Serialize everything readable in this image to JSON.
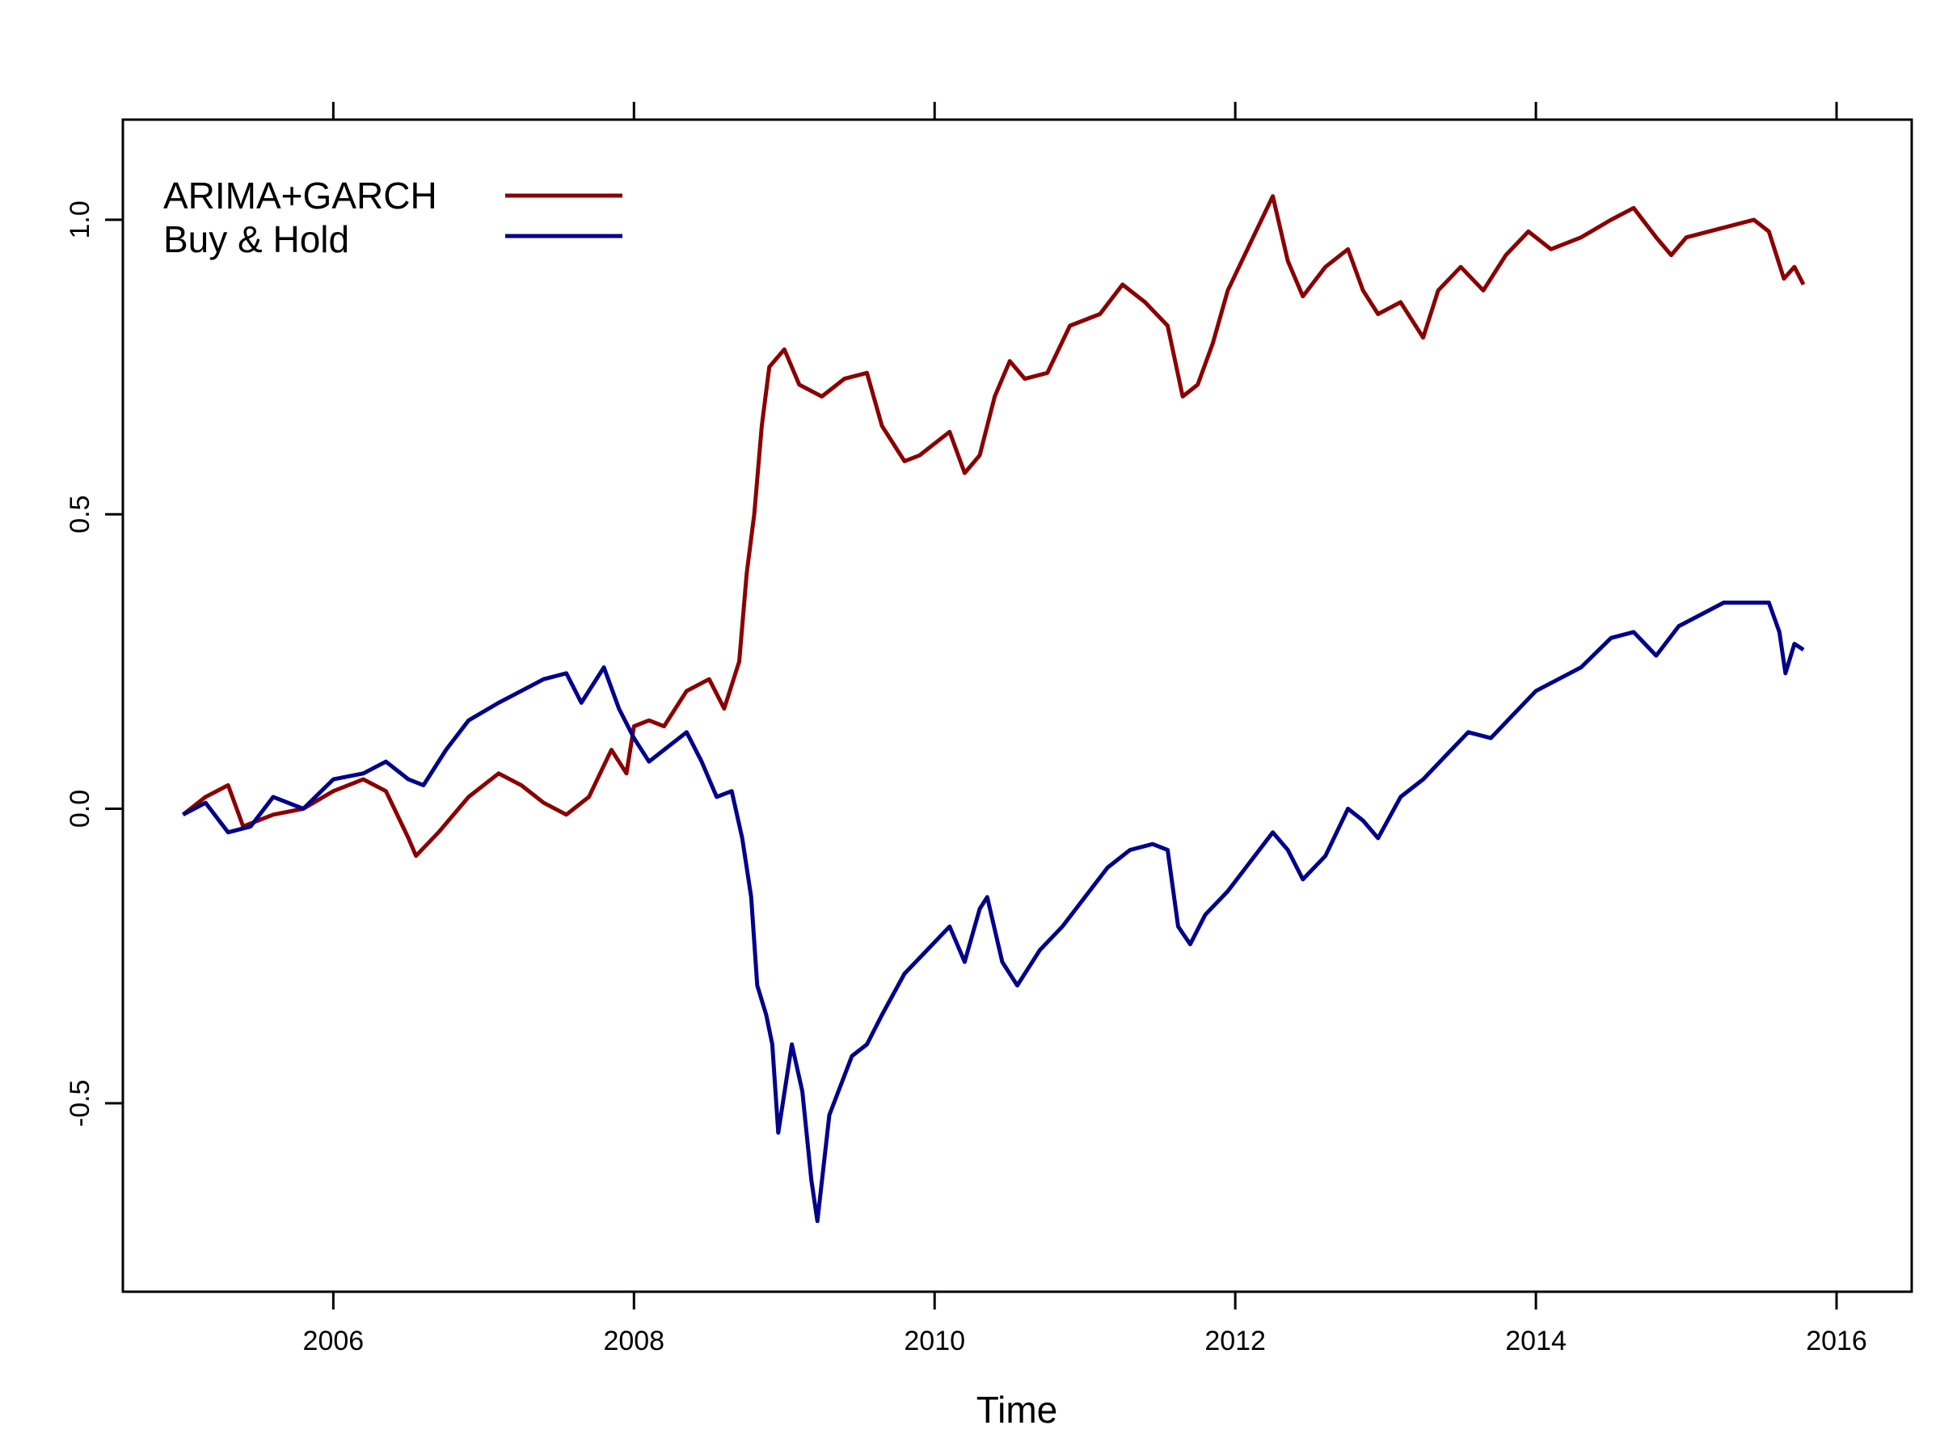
{
  "chart_data": {
    "type": "line",
    "title": "",
    "xlabel": "Time",
    "ylabel": "",
    "xlim": [
      2004.6,
      2016.5
    ],
    "ylim": [
      -0.82,
      1.17
    ],
    "x_ticks": [
      2006,
      2008,
      2010,
      2012,
      2014,
      2016
    ],
    "x_tick_labels": [
      "2006",
      "2008",
      "2010",
      "2012",
      "2014",
      "2016"
    ],
    "y_ticks": [
      -0.5,
      0.0,
      0.5,
      1.0
    ],
    "y_tick_labels": [
      "-0.5",
      "0.0",
      "0.5",
      "1.0"
    ],
    "grid": false,
    "legend_position": "top-left",
    "series": [
      {
        "name": "ARIMA+GARCH",
        "color": "#8b0000",
        "points": [
          [
            2005.0,
            -0.01
          ],
          [
            2005.15,
            0.02
          ],
          [
            2005.3,
            0.04
          ],
          [
            2005.4,
            -0.03
          ],
          [
            2005.6,
            -0.01
          ],
          [
            2005.8,
            0.0
          ],
          [
            2006.0,
            0.03
          ],
          [
            2006.2,
            0.05
          ],
          [
            2006.35,
            0.03
          ],
          [
            2006.5,
            -0.05
          ],
          [
            2006.55,
            -0.08
          ],
          [
            2006.7,
            -0.04
          ],
          [
            2006.9,
            0.02
          ],
          [
            2007.1,
            0.06
          ],
          [
            2007.25,
            0.04
          ],
          [
            2007.4,
            0.01
          ],
          [
            2007.55,
            -0.01
          ],
          [
            2007.7,
            0.02
          ],
          [
            2007.85,
            0.1
          ],
          [
            2007.95,
            0.06
          ],
          [
            2008.0,
            0.14
          ],
          [
            2008.1,
            0.15
          ],
          [
            2008.2,
            0.14
          ],
          [
            2008.35,
            0.2
          ],
          [
            2008.5,
            0.22
          ],
          [
            2008.6,
            0.17
          ],
          [
            2008.7,
            0.25
          ],
          [
            2008.75,
            0.4
          ],
          [
            2008.8,
            0.5
          ],
          [
            2008.85,
            0.65
          ],
          [
            2008.9,
            0.75
          ],
          [
            2009.0,
            0.78
          ],
          [
            2009.1,
            0.72
          ],
          [
            2009.25,
            0.7
          ],
          [
            2009.4,
            0.73
          ],
          [
            2009.55,
            0.74
          ],
          [
            2009.65,
            0.65
          ],
          [
            2009.8,
            0.59
          ],
          [
            2009.9,
            0.6
          ],
          [
            2010.1,
            0.64
          ],
          [
            2010.2,
            0.57
          ],
          [
            2010.3,
            0.6
          ],
          [
            2010.4,
            0.7
          ],
          [
            2010.5,
            0.76
          ],
          [
            2010.6,
            0.73
          ],
          [
            2010.75,
            0.74
          ],
          [
            2010.9,
            0.82
          ],
          [
            2011.1,
            0.84
          ],
          [
            2011.25,
            0.89
          ],
          [
            2011.4,
            0.86
          ],
          [
            2011.55,
            0.82
          ],
          [
            2011.65,
            0.7
          ],
          [
            2011.75,
            0.72
          ],
          [
            2011.85,
            0.79
          ],
          [
            2011.95,
            0.88
          ],
          [
            2012.1,
            0.96
          ],
          [
            2012.25,
            1.04
          ],
          [
            2012.35,
            0.93
          ],
          [
            2012.45,
            0.87
          ],
          [
            2012.6,
            0.92
          ],
          [
            2012.75,
            0.95
          ],
          [
            2012.85,
            0.88
          ],
          [
            2012.95,
            0.84
          ],
          [
            2013.1,
            0.86
          ],
          [
            2013.25,
            0.8
          ],
          [
            2013.35,
            0.88
          ],
          [
            2013.5,
            0.92
          ],
          [
            2013.65,
            0.88
          ],
          [
            2013.8,
            0.94
          ],
          [
            2013.95,
            0.98
          ],
          [
            2014.1,
            0.95
          ],
          [
            2014.3,
            0.97
          ],
          [
            2014.5,
            1.0
          ],
          [
            2014.65,
            1.02
          ],
          [
            2014.8,
            0.97
          ],
          [
            2014.9,
            0.94
          ],
          [
            2015.0,
            0.97
          ],
          [
            2015.15,
            0.98
          ],
          [
            2015.3,
            0.99
          ],
          [
            2015.45,
            1.0
          ],
          [
            2015.55,
            0.98
          ],
          [
            2015.65,
            0.9
          ],
          [
            2015.72,
            0.92
          ],
          [
            2015.78,
            0.89
          ]
        ]
      },
      {
        "name": "Buy & Hold",
        "color": "#00008b",
        "points": [
          [
            2005.0,
            -0.01
          ],
          [
            2005.15,
            0.01
          ],
          [
            2005.3,
            -0.04
          ],
          [
            2005.45,
            -0.03
          ],
          [
            2005.6,
            0.02
          ],
          [
            2005.8,
            0.0
          ],
          [
            2006.0,
            0.05
          ],
          [
            2006.2,
            0.06
          ],
          [
            2006.35,
            0.08
          ],
          [
            2006.5,
            0.05
          ],
          [
            2006.6,
            0.04
          ],
          [
            2006.75,
            0.1
          ],
          [
            2006.9,
            0.15
          ],
          [
            2007.1,
            0.18
          ],
          [
            2007.25,
            0.2
          ],
          [
            2007.4,
            0.22
          ],
          [
            2007.55,
            0.23
          ],
          [
            2007.65,
            0.18
          ],
          [
            2007.8,
            0.24
          ],
          [
            2007.9,
            0.17
          ],
          [
            2008.0,
            0.12
          ],
          [
            2008.1,
            0.08
          ],
          [
            2008.2,
            0.1
          ],
          [
            2008.35,
            0.13
          ],
          [
            2008.45,
            0.08
          ],
          [
            2008.55,
            0.02
          ],
          [
            2008.65,
            0.03
          ],
          [
            2008.72,
            -0.05
          ],
          [
            2008.78,
            -0.15
          ],
          [
            2008.82,
            -0.3
          ],
          [
            2008.88,
            -0.35
          ],
          [
            2008.92,
            -0.4
          ],
          [
            2008.96,
            -0.55
          ],
          [
            2009.05,
            -0.4
          ],
          [
            2009.12,
            -0.48
          ],
          [
            2009.18,
            -0.63
          ],
          [
            2009.22,
            -0.7
          ],
          [
            2009.3,
            -0.52
          ],
          [
            2009.45,
            -0.42
          ],
          [
            2009.55,
            -0.4
          ],
          [
            2009.65,
            -0.35
          ],
          [
            2009.8,
            -0.28
          ],
          [
            2009.95,
            -0.24
          ],
          [
            2010.1,
            -0.2
          ],
          [
            2010.2,
            -0.26
          ],
          [
            2010.3,
            -0.17
          ],
          [
            2010.35,
            -0.15
          ],
          [
            2010.45,
            -0.26
          ],
          [
            2010.55,
            -0.3
          ],
          [
            2010.7,
            -0.24
          ],
          [
            2010.85,
            -0.2
          ],
          [
            2011.0,
            -0.15
          ],
          [
            2011.15,
            -0.1
          ],
          [
            2011.3,
            -0.07
          ],
          [
            2011.45,
            -0.06
          ],
          [
            2011.55,
            -0.07
          ],
          [
            2011.62,
            -0.2
          ],
          [
            2011.7,
            -0.23
          ],
          [
            2011.8,
            -0.18
          ],
          [
            2011.95,
            -0.14
          ],
          [
            2012.1,
            -0.09
          ],
          [
            2012.25,
            -0.04
          ],
          [
            2012.35,
            -0.07
          ],
          [
            2012.45,
            -0.12
          ],
          [
            2012.6,
            -0.08
          ],
          [
            2012.75,
            0.0
          ],
          [
            2012.85,
            -0.02
          ],
          [
            2012.95,
            -0.05
          ],
          [
            2013.1,
            0.02
          ],
          [
            2013.25,
            0.05
          ],
          [
            2013.4,
            0.09
          ],
          [
            2013.55,
            0.13
          ],
          [
            2013.7,
            0.12
          ],
          [
            2013.85,
            0.16
          ],
          [
            2014.0,
            0.2
          ],
          [
            2014.15,
            0.22
          ],
          [
            2014.3,
            0.24
          ],
          [
            2014.5,
            0.29
          ],
          [
            2014.65,
            0.3
          ],
          [
            2014.8,
            0.26
          ],
          [
            2014.95,
            0.31
          ],
          [
            2015.1,
            0.33
          ],
          [
            2015.25,
            0.35
          ],
          [
            2015.4,
            0.35
          ],
          [
            2015.55,
            0.35
          ],
          [
            2015.62,
            0.3
          ],
          [
            2015.66,
            0.23
          ],
          [
            2015.72,
            0.28
          ],
          [
            2015.78,
            0.27
          ]
        ]
      }
    ]
  }
}
